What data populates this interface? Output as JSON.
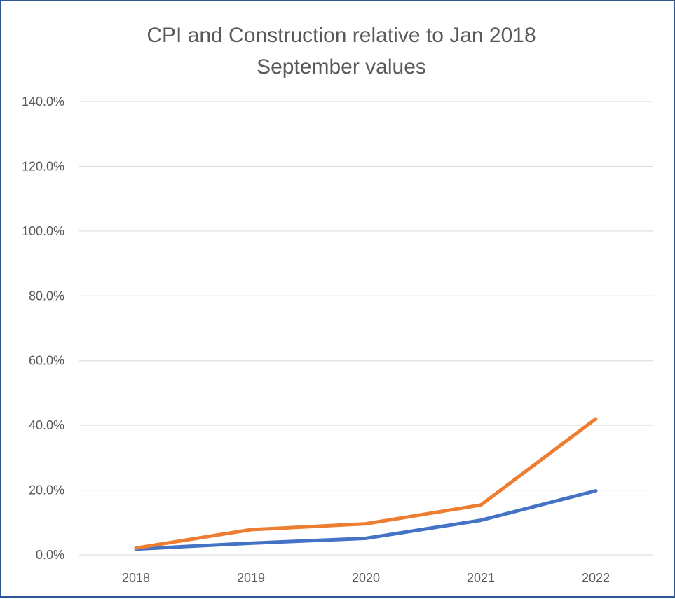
{
  "chart_data": {
    "type": "line",
    "title": "CPI and Construction relative to Jan 2018",
    "subtitle": "September values",
    "xlabel": "",
    "ylabel": "",
    "categories": [
      "2018",
      "2019",
      "2020",
      "2021",
      "2022"
    ],
    "ylim": [
      0,
      140
    ],
    "yticks": [
      0,
      20,
      40,
      60,
      80,
      100,
      120,
      140
    ],
    "ytick_labels": [
      "0.0%",
      "20.0%",
      "40.0%",
      "60.0%",
      "80.0%",
      "100.0%",
      "120.0%",
      "140.0%"
    ],
    "grid": true,
    "legend": "none",
    "series": [
      {
        "color": "#4472c4",
        "values": [
          1.8,
          3.6,
          5.1,
          10.7,
          19.8
        ]
      },
      {
        "color": "#ed7d31",
        "values": [
          2.1,
          7.8,
          9.6,
          15.4,
          42.0
        ]
      }
    ]
  }
}
